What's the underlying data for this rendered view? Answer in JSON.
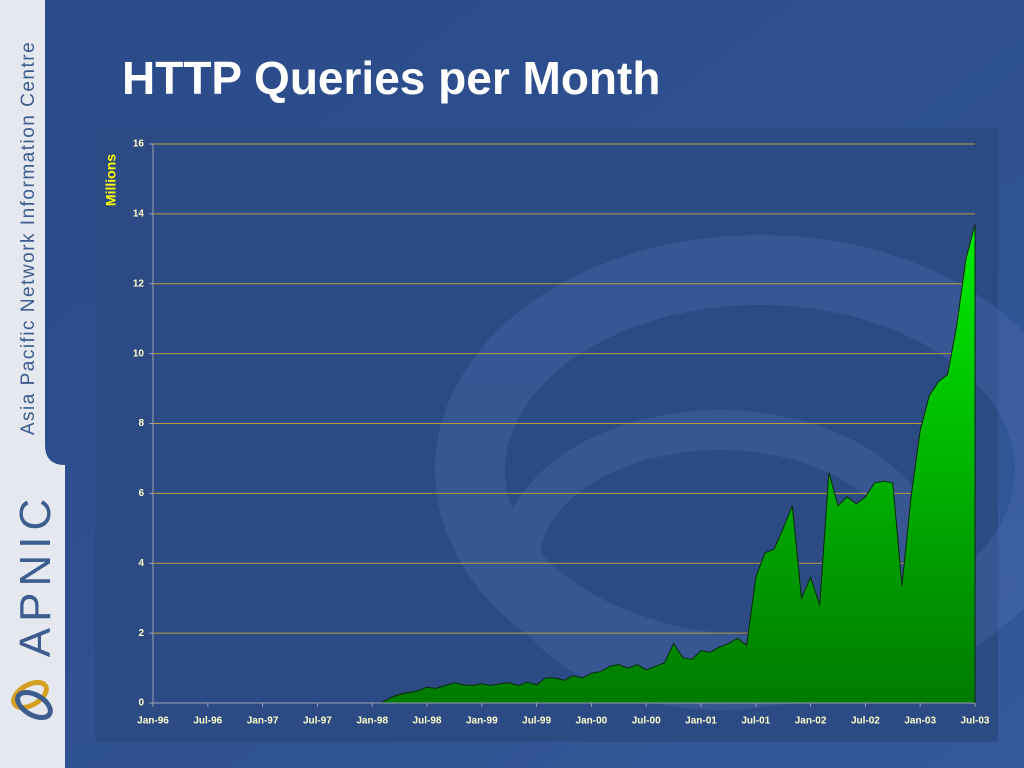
{
  "branding": {
    "organisation": "Asia Pacific Network Information Centre",
    "logo_text": "APNIC"
  },
  "chart_data": {
    "type": "area",
    "title": "HTTP Queries per Month",
    "y_label": "Millions",
    "categories": [
      "Jan-96",
      null,
      null,
      null,
      null,
      null,
      "Jul-96",
      null,
      null,
      null,
      null,
      null,
      "Jan-97",
      null,
      null,
      null,
      null,
      null,
      "Jul-97",
      null,
      null,
      null,
      null,
      null,
      "Jan-98",
      null,
      null,
      null,
      null,
      null,
      "Jul-98",
      null,
      null,
      null,
      null,
      null,
      "Jan-99",
      null,
      null,
      null,
      null,
      null,
      "Jul-99",
      null,
      null,
      null,
      null,
      null,
      "Jan-00",
      null,
      null,
      null,
      null,
      null,
      "Jul-00",
      null,
      null,
      null,
      null,
      null,
      "Jan-01",
      null,
      null,
      null,
      null,
      null,
      "Jul-01",
      null,
      null,
      null,
      null,
      null,
      "Jan-02",
      null,
      null,
      null,
      null,
      null,
      "Jul-02",
      null,
      null,
      null,
      null,
      null,
      "Jan-03",
      null,
      null,
      null,
      null,
      null,
      "Jul-03"
    ],
    "values": [
      0,
      0,
      0,
      0,
      0,
      0,
      0,
      0,
      0,
      0,
      0,
      0,
      0,
      0,
      0,
      0,
      0,
      0,
      0,
      0,
      0,
      0,
      0,
      0,
      0,
      0,
      0.15,
      0.25,
      0.3,
      0.35,
      0.45,
      0.42,
      0.5,
      0.58,
      0.52,
      0.5,
      0.55,
      0.5,
      0.55,
      0.58,
      0.5,
      0.6,
      0.52,
      0.72,
      0.72,
      0.65,
      0.78,
      0.72,
      0.85,
      0.9,
      1.05,
      1.1,
      1.0,
      1.1,
      0.95,
      1.05,
      1.15,
      1.7,
      1.3,
      1.25,
      1.5,
      1.45,
      1.6,
      1.7,
      1.85,
      1.65,
      3.6,
      4.3,
      4.4,
      5.0,
      5.65,
      3.0,
      3.6,
      2.8,
      6.6,
      5.65,
      5.9,
      5.7,
      5.9,
      6.3,
      6.35,
      6.3,
      3.35,
      5.9,
      7.8,
      8.8,
      9.2,
      9.4,
      10.8,
      12.7,
      13.7
    ],
    "color": "#00ee00",
    "ylim": [
      0,
      16
    ],
    "yticks": [
      0,
      2,
      4,
      6,
      8,
      10,
      12,
      14,
      16
    ],
    "grid": true
  }
}
